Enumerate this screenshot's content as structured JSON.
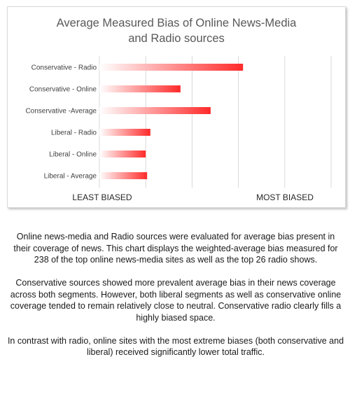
{
  "chart_data": {
    "type": "bar",
    "orientation": "horizontal",
    "title_lines": [
      "Average Measured Bias of Online News-Media",
      "and Radio sources"
    ],
    "categories": [
      "Conservative - Radio",
      "Conservative - Online",
      "Conservative -Average",
      "Liberal - Radio",
      "Liberal - Online",
      "Liberal - Average"
    ],
    "values": [
      3.1,
      1.75,
      2.4,
      1.1,
      1.0,
      1.03
    ],
    "xlim": [
      0,
      5
    ],
    "xlabel_left": "LEAST BIASED",
    "xlabel_right": "MOST BIASED",
    "grid": "vertical",
    "bar_fill": "gradient",
    "colors": {
      "bar_start": "#ffffff",
      "bar_end": "#ff2a2a",
      "grid": "#d9d9d9"
    }
  },
  "caption": [
    "Online news-media and Radio sources were evaluated for average bias present in their coverage of news.  This chart displays the weighted-average bias measured for 238 of the top online news-media sites as well as the top 26 radio shows.",
    "Conservative sources showed more prevalent average bias in their news coverage across both segments.  However, both liberal segments as well as conservative online coverage tended to remain relatively close to neutral.  Conservative radio clearly fills a highly biased space.",
    "In contrast with radio, online sites with the most extreme biases (both conservative and liberal) received significantly lower total traffic."
  ]
}
